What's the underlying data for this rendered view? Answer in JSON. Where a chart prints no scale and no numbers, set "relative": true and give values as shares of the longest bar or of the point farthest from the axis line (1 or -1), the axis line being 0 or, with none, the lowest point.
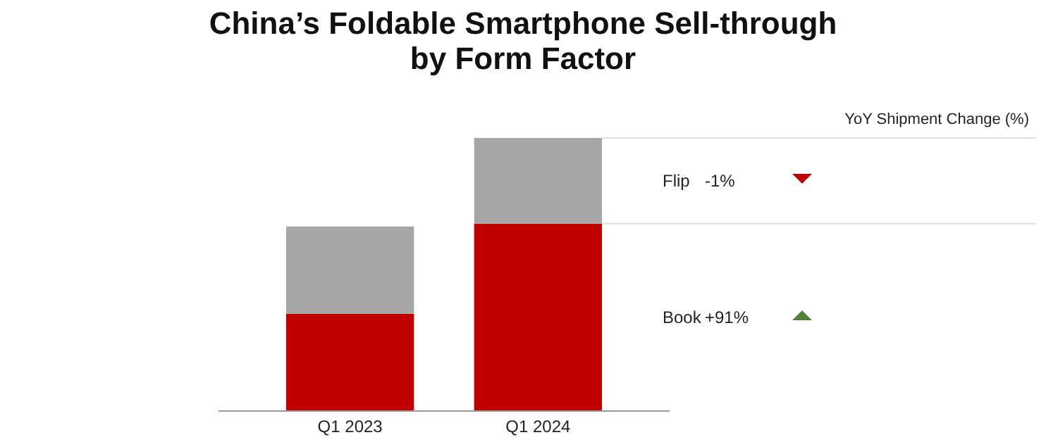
{
  "chart_data": {
    "type": "bar",
    "title": "China’s Foldable Smartphone Sell-through by Form Factor",
    "categories": [
      "Q1 2023",
      "Q1 2024"
    ],
    "stacked": true,
    "relative": true,
    "series": [
      {
        "name": "Book",
        "color": "#c00000",
        "values": [
          0.356,
          0.686
        ]
      },
      {
        "name": "Flip",
        "color": "#a6a6a6",
        "values": [
          0.32,
          0.314
        ]
      }
    ],
    "annotations": [
      "YoY Shipment Change (%)",
      "+91%",
      "-1%"
    ]
  }
}
